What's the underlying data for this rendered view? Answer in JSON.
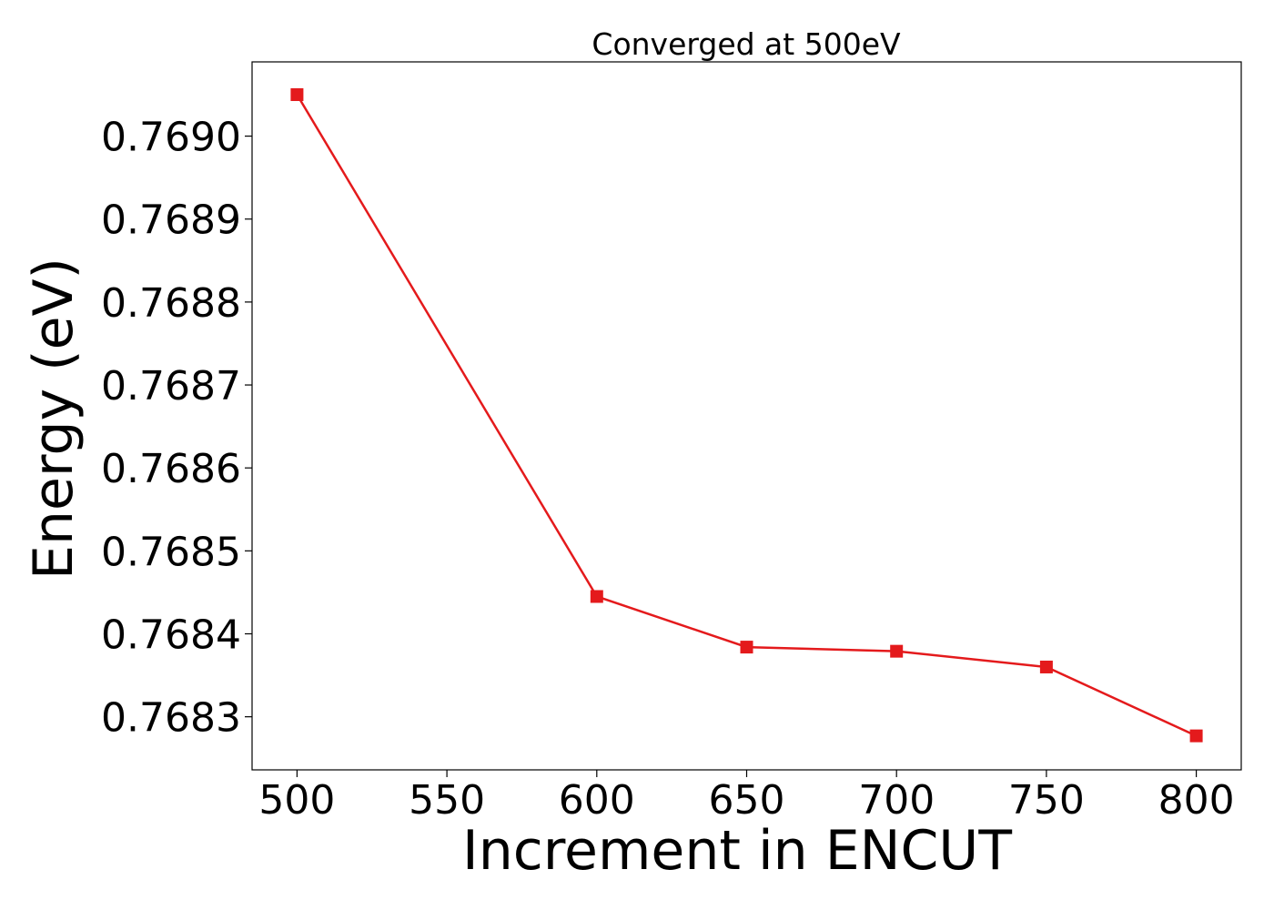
{
  "chart_data": {
    "type": "line",
    "title": "Converged at 500eV",
    "xlabel": "Increment in ENCUT",
    "ylabel": "Energy (eV)",
    "x": [
      500,
      600,
      650,
      700,
      750,
      800
    ],
    "series": [
      {
        "values": [
          0.76905,
          0.768445,
          0.768384,
          0.768379,
          0.76836,
          0.768277
        ]
      }
    ],
    "xticks": [
      500,
      550,
      600,
      650,
      700,
      750,
      800
    ],
    "xtick_labels": [
      "500",
      "550",
      "600",
      "650",
      "700",
      "750",
      "800"
    ],
    "yticks": [
      0.7683,
      0.7684,
      0.7685,
      0.7686,
      0.7687,
      0.7688,
      0.7689,
      0.769
    ],
    "ytick_labels": [
      "0.7683",
      "0.7684",
      "0.7685",
      "0.7686",
      "0.7687",
      "0.7688",
      "0.7689",
      "0.7690"
    ],
    "xlim": [
      485,
      815
    ],
    "ylim": [
      0.768236,
      0.7690895
    ],
    "grid": false,
    "legend": "none",
    "marker": "square",
    "color": "#e41a1c"
  }
}
